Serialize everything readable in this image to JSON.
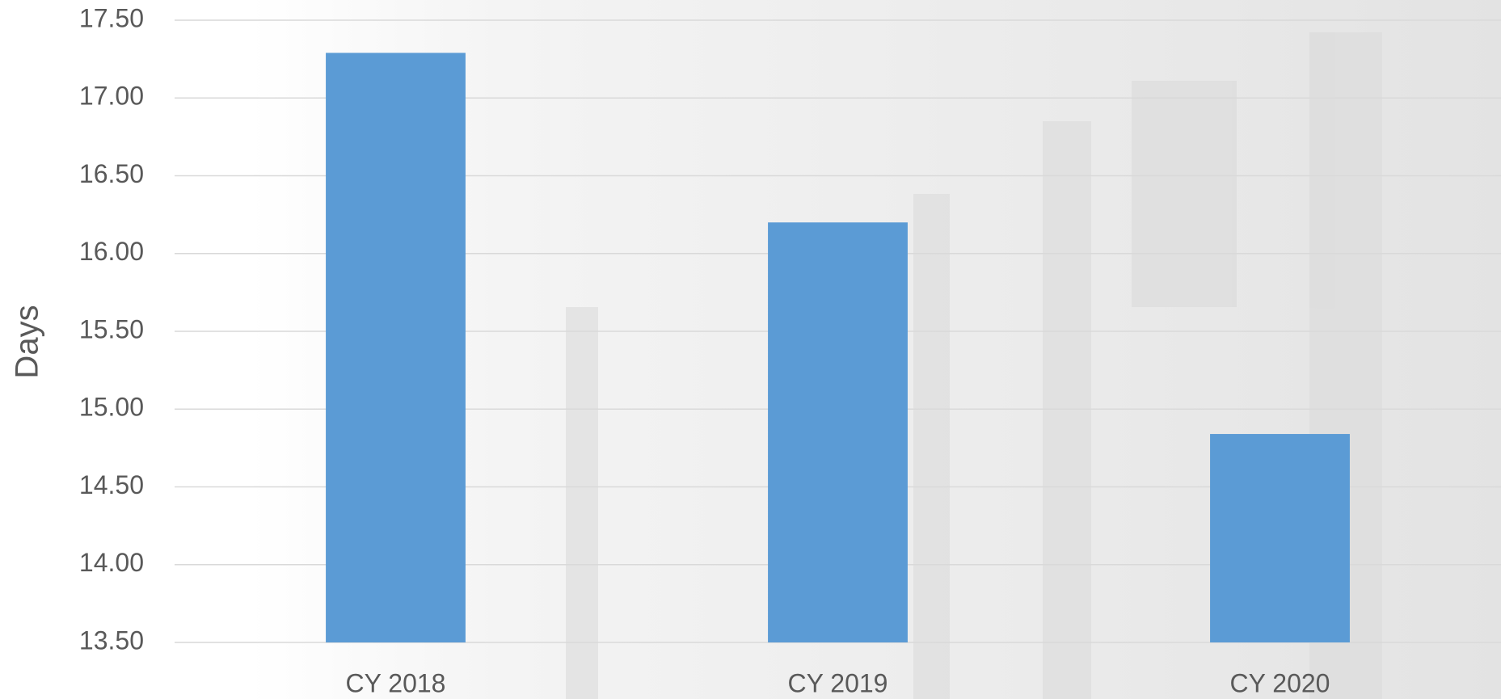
{
  "chart_data": {
    "type": "bar",
    "y_label": "Days",
    "categories": [
      "CY 2018",
      "CY 2019",
      "CY 2020"
    ],
    "values": [
      17.29,
      16.2,
      14.84
    ],
    "color": "#5b9bd5",
    "ylim": [
      13.5,
      17.5
    ],
    "yticks": [
      {
        "value": 13.5,
        "label": "13.50"
      },
      {
        "value": 14,
        "label": "14.00"
      },
      {
        "value": 14.5,
        "label": "14.50"
      },
      {
        "value": 15,
        "label": "15.00"
      },
      {
        "value": 15.5,
        "label": "15.50"
      },
      {
        "value": 16,
        "label": "16.00"
      },
      {
        "value": 16.5,
        "label": "16.50"
      },
      {
        "value": 17,
        "label": "17.00"
      },
      {
        "value": 17.5,
        "label": "17.50"
      }
    ],
    "grid": true
  }
}
